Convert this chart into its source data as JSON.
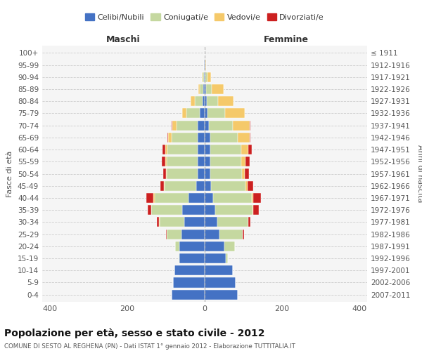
{
  "age_groups": [
    "0-4",
    "5-9",
    "10-14",
    "15-19",
    "20-24",
    "25-29",
    "30-34",
    "35-39",
    "40-44",
    "45-49",
    "50-54",
    "55-59",
    "60-64",
    "65-69",
    "70-74",
    "75-79",
    "80-84",
    "85-89",
    "90-94",
    "95-99",
    "100+"
  ],
  "birth_years": [
    "2007-2011",
    "2002-2006",
    "1997-2001",
    "1992-1996",
    "1987-1991",
    "1982-1986",
    "1977-1981",
    "1972-1976",
    "1967-1971",
    "1962-1966",
    "1957-1961",
    "1952-1956",
    "1947-1951",
    "1942-1946",
    "1937-1941",
    "1932-1936",
    "1927-1931",
    "1922-1926",
    "1917-1921",
    "1912-1916",
    "≤ 1911"
  ],
  "maschi": {
    "celibi": [
      85,
      82,
      78,
      65,
      65,
      60,
      52,
      58,
      42,
      22,
      18,
      18,
      18,
      18,
      18,
      12,
      6,
      4,
      2,
      1,
      0
    ],
    "coniugati": [
      0,
      0,
      0,
      3,
      12,
      38,
      65,
      80,
      88,
      82,
      80,
      80,
      78,
      68,
      55,
      35,
      20,
      8,
      3,
      1,
      0
    ],
    "vedovi": [
      0,
      0,
      0,
      0,
      0,
      0,
      1,
      1,
      2,
      1,
      2,
      3,
      5,
      8,
      10,
      12,
      10,
      5,
      2,
      0,
      0
    ],
    "divorziati": [
      0,
      0,
      0,
      0,
      0,
      2,
      5,
      8,
      18,
      10,
      8,
      10,
      8,
      2,
      2,
      0,
      0,
      0,
      0,
      0,
      0
    ]
  },
  "femmine": {
    "nubili": [
      85,
      80,
      72,
      55,
      50,
      38,
      32,
      28,
      22,
      16,
      14,
      14,
      14,
      14,
      10,
      8,
      5,
      4,
      2,
      1,
      0
    ],
    "coniugate": [
      0,
      0,
      0,
      5,
      28,
      60,
      80,
      95,
      100,
      90,
      82,
      80,
      80,
      72,
      62,
      45,
      30,
      15,
      5,
      1,
      0
    ],
    "vedove": [
      0,
      0,
      0,
      0,
      0,
      1,
      1,
      2,
      3,
      5,
      8,
      12,
      18,
      30,
      45,
      50,
      40,
      30,
      10,
      2,
      0
    ],
    "divorziate": [
      0,
      0,
      0,
      0,
      0,
      2,
      5,
      15,
      20,
      15,
      10,
      10,
      10,
      2,
      2,
      0,
      0,
      0,
      0,
      0,
      0
    ]
  },
  "colors": {
    "celibi": "#4472c4",
    "coniugati": "#c5d8a0",
    "vedovi": "#f5c96a",
    "divorziati": "#cc2020"
  },
  "xlim": 420,
  "title": "Popolazione per età, sesso e stato civile - 2012",
  "subtitle": "COMUNE DI SESTO AL REGHENA (PN) - Dati ISTAT 1° gennaio 2012 - Elaborazione TUTTITALIA.IT",
  "ylabel_left": "Fasce di età",
  "ylabel_right": "Anni di nascita",
  "xlabel_left": "Maschi",
  "xlabel_right": "Femmine"
}
